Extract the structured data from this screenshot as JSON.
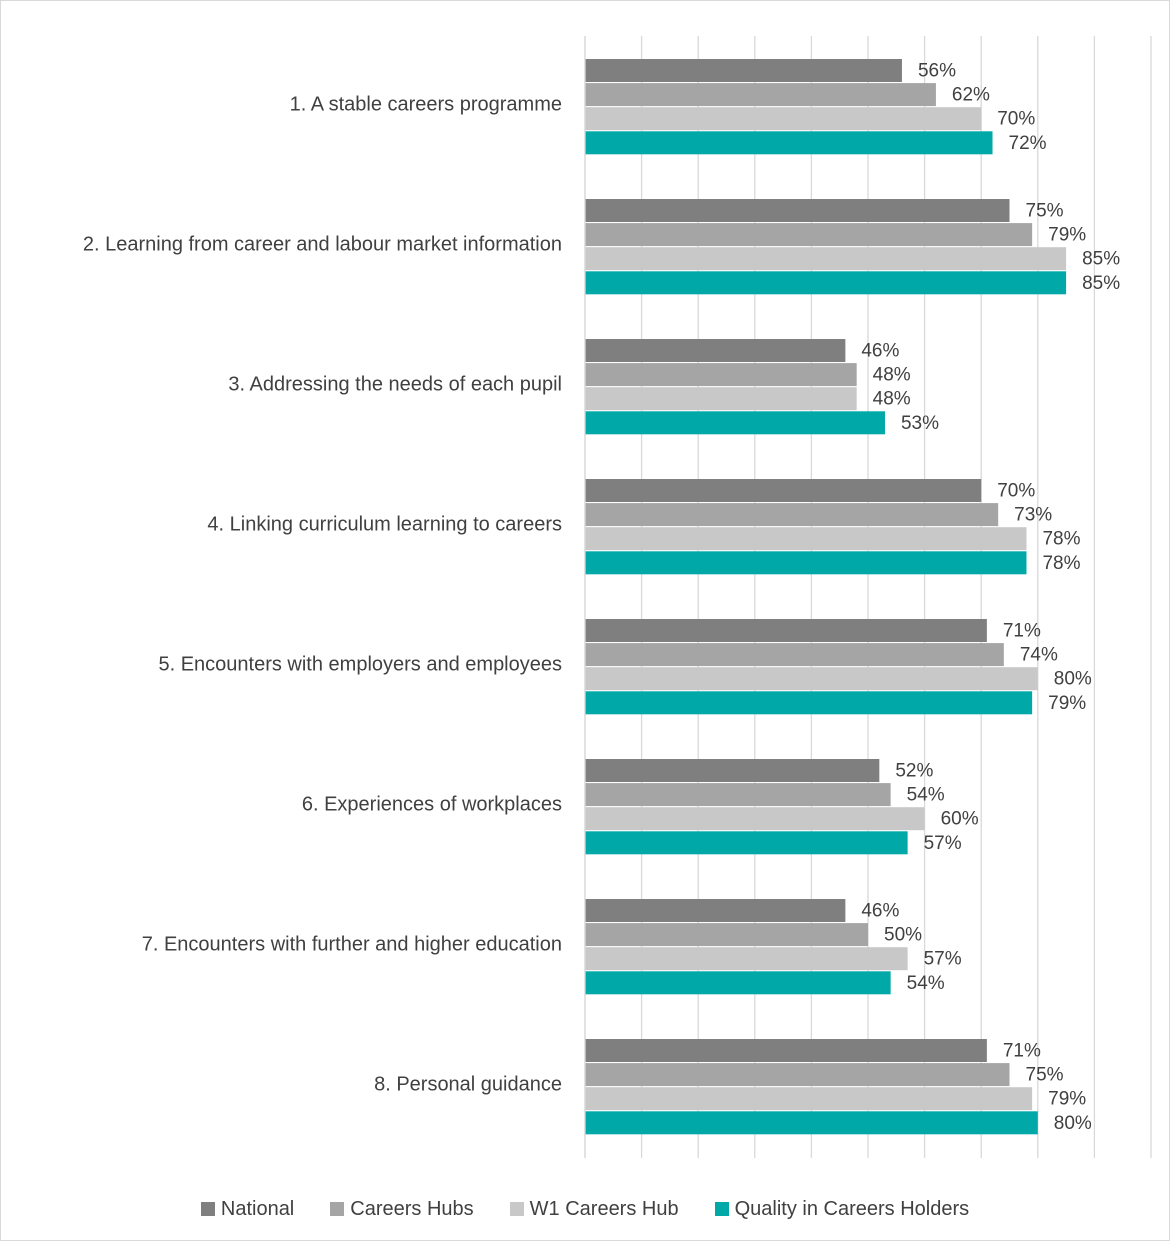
{
  "chart_data": {
    "type": "bar",
    "orientation": "horizontal",
    "categories": [
      "1. A stable careers programme",
      "2. Learning from career and labour market information",
      "3. Addressing the needs of each pupil",
      "4. Linking curriculum learning to careers",
      "5. Encounters with employers and employees",
      "6. Experiences of workplaces",
      "7. Encounters with further and higher education",
      "8. Personal guidance"
    ],
    "series": [
      {
        "name": "National",
        "color": "#7f7f7f",
        "values": [
          56,
          75,
          46,
          70,
          71,
          52,
          46,
          71
        ],
        "labels": [
          "56%",
          "75%",
          "46%",
          "70%",
          "71%",
          "52%",
          "46%",
          "71%"
        ]
      },
      {
        "name": "Careers Hubs",
        "color": "#a5a5a5",
        "values": [
          62,
          79,
          48,
          73,
          74,
          54,
          50,
          75
        ],
        "labels": [
          "62%",
          "79%",
          "48%",
          "73%",
          "74%",
          "54%",
          "50%",
          "75%"
        ]
      },
      {
        "name": "W1 Careers Hub",
        "color": "#c8c8c8",
        "values": [
          70,
          85,
          48,
          78,
          80,
          60,
          57,
          79
        ],
        "labels": [
          "70%",
          "85%",
          "48%",
          "78%",
          "80%",
          "60%",
          "57%",
          "79%"
        ]
      },
      {
        "name": "Quality in Careers Holders",
        "color": "#00a8a8",
        "values": [
          72,
          85,
          53,
          78,
          79,
          57,
          54,
          80
        ],
        "labels": [
          "72%",
          "85%",
          "53%",
          "78%",
          "79%",
          "57%",
          "54%",
          "80%"
        ]
      }
    ],
    "xlim": [
      0,
      100
    ],
    "x_tick_step": 10,
    "grid": "vertical",
    "axis_tick_labels_shown": false,
    "legend_position": "bottom"
  }
}
